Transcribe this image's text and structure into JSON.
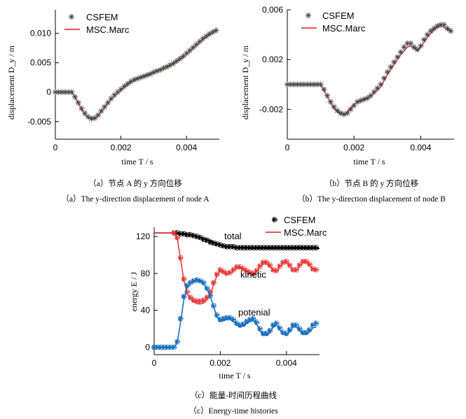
{
  "colors": {
    "csfem": "#444444",
    "marc": "#e8393b",
    "total": "#000000",
    "kinetic": "#e8393b",
    "potential": "#1a6fbf"
  },
  "chart_data": [
    {
      "id": "a",
      "type": "line",
      "xlabel": "time T / s",
      "ylabel": "displacement D_y / m",
      "xlim": [
        0,
        0.005
      ],
      "ylim": [
        -0.008,
        0.014
      ],
      "xticks": [
        "0",
        "0.002",
        "0.004"
      ],
      "yticks": [
        "-0.005",
        "0",
        "0.005",
        "0.010"
      ],
      "legend": {
        "position": "top-left",
        "entries": [
          "CSFEM",
          "MSC.Marc"
        ]
      },
      "caption_cn": "（a）节点 A 的 y 方向位移",
      "caption_en": "（a）The y-direction displacement of node A",
      "series": [
        {
          "name": "CSFEM",
          "marker": "asterisk",
          "x": [
            0,
            0.0001,
            0.0002,
            0.0003,
            0.0004,
            0.0005,
            0.0006,
            0.0007,
            0.0008,
            0.0009,
            0.001,
            0.0011,
            0.0012,
            0.0013,
            0.0014,
            0.0015,
            0.0016,
            0.0017,
            0.0018,
            0.0019,
            0.002,
            0.0021,
            0.0022,
            0.0023,
            0.0024,
            0.0025,
            0.0026,
            0.0027,
            0.0028,
            0.0029,
            0.003,
            0.0031,
            0.0032,
            0.0033,
            0.0034,
            0.0035,
            0.0036,
            0.0037,
            0.0038,
            0.0039,
            0.004,
            0.0041,
            0.0042,
            0.0043,
            0.0044,
            0.0045,
            0.0046,
            0.0047,
            0.0048,
            0.0049
          ],
          "y": [
            0,
            0,
            0,
            0,
            0,
            0,
            -0.0008,
            -0.0018,
            -0.0028,
            -0.0036,
            -0.0042,
            -0.0045,
            -0.0044,
            -0.0039,
            -0.0032,
            -0.0025,
            -0.0018,
            -0.0011,
            -0.0005,
            0,
            0.0005,
            0.001,
            0.0014,
            0.0018,
            0.0021,
            0.0023,
            0.0025,
            0.0027,
            0.0029,
            0.0031,
            0.0034,
            0.0036,
            0.0038,
            0.0041,
            0.0043,
            0.0046,
            0.0049,
            0.0053,
            0.0057,
            0.0061,
            0.0066,
            0.0071,
            0.0076,
            0.0081,
            0.0086,
            0.0091,
            0.0095,
            0.0099,
            0.0102,
            0.0105
          ]
        },
        {
          "name": "MSC.Marc",
          "marker": "line",
          "x": [
            0,
            0.0005,
            0.0006,
            0.0007,
            0.0008,
            0.0009,
            0.001,
            0.0011,
            0.0012,
            0.0013,
            0.0014,
            0.0015,
            0.0016,
            0.0017,
            0.0018,
            0.0019,
            0.002,
            0.0022,
            0.0024,
            0.0026,
            0.0028,
            0.003,
            0.0032,
            0.0034,
            0.0036,
            0.0038,
            0.004,
            0.0042,
            0.0044,
            0.0046,
            0.0048,
            0.0049
          ],
          "y": [
            0,
            0,
            -0.0009,
            -0.0019,
            -0.0029,
            -0.0037,
            -0.0043,
            -0.0046,
            -0.0045,
            -0.004,
            -0.0033,
            -0.0026,
            -0.0019,
            -0.0012,
            -0.0006,
            -0.0001,
            0.0004,
            0.0013,
            0.002,
            0.0025,
            0.0029,
            0.0033,
            0.0037,
            0.0042,
            0.0048,
            0.0056,
            0.0065,
            0.0075,
            0.0085,
            0.0094,
            0.0101,
            0.0104
          ]
        }
      ]
    },
    {
      "id": "b",
      "type": "line",
      "xlabel": "time T / s",
      "ylabel": "displacement D_y / m",
      "xlim": [
        0,
        0.005
      ],
      "ylim": [
        -0.0044,
        0.006
      ],
      "xticks": [
        "0",
        "0.002",
        "0.004"
      ],
      "yticks": [
        "-0.002",
        "0.002",
        "0.006"
      ],
      "legend": {
        "position": "top-left",
        "entries": [
          "CSFEM",
          "MSC.Marc"
        ]
      },
      "caption_cn": "（b）节点 B 的 y 方向位移",
      "caption_en": "（b）The y-direction displacement of node B",
      "series": [
        {
          "name": "CSFEM",
          "marker": "asterisk",
          "x": [
            0,
            0.0001,
            0.0002,
            0.0003,
            0.0004,
            0.0005,
            0.0006,
            0.0007,
            0.0008,
            0.0009,
            0.001,
            0.0011,
            0.0012,
            0.0013,
            0.0014,
            0.0015,
            0.0016,
            0.0017,
            0.0018,
            0.0019,
            0.002,
            0.0021,
            0.0022,
            0.0023,
            0.0024,
            0.0025,
            0.0026,
            0.0027,
            0.0028,
            0.0029,
            0.003,
            0.0031,
            0.0032,
            0.0033,
            0.0034,
            0.0035,
            0.0036,
            0.0037,
            0.0038,
            0.0039,
            0.004,
            0.0041,
            0.0042,
            0.0043,
            0.0044,
            0.0045,
            0.0046,
            0.0047,
            0.0048,
            0.0049
          ],
          "y": [
            0,
            0,
            0,
            0,
            0,
            0,
            0,
            0,
            0,
            0,
            0,
            -0.0004,
            -0.0009,
            -0.0014,
            -0.0018,
            -0.0021,
            -0.0023,
            -0.0024,
            -0.0023,
            -0.002,
            -0.0017,
            -0.0014,
            -0.0013,
            -0.0012,
            -0.0011,
            -0.0009,
            -0.0006,
            -0.0003,
            0,
            0.0005,
            0.001,
            0.0014,
            0.0018,
            0.0022,
            0.0026,
            0.003,
            0.0033,
            0.0033,
            0.003,
            0.0028,
            0.0031,
            0.0036,
            0.004,
            0.0043,
            0.0045,
            0.0047,
            0.0048,
            0.0048,
            0.0045,
            0.0043
          ]
        },
        {
          "name": "MSC.Marc",
          "marker": "line",
          "x": [
            0,
            0.001,
            0.0011,
            0.0012,
            0.0013,
            0.0014,
            0.0015,
            0.0016,
            0.0017,
            0.0018,
            0.0019,
            0.002,
            0.0022,
            0.0024,
            0.0026,
            0.0028,
            0.003,
            0.0032,
            0.0034,
            0.0036,
            0.0037,
            0.0038,
            0.0039,
            0.004,
            0.0042,
            0.0044,
            0.0045,
            0.0046,
            0.0047,
            0.0048,
            0.0049
          ],
          "y": [
            0,
            0,
            -0.0005,
            -0.001,
            -0.0015,
            -0.0019,
            -0.0022,
            -0.0024,
            -0.0024,
            -0.0022,
            -0.0019,
            -0.0016,
            -0.0013,
            -0.0011,
            -0.0007,
            -0.0002,
            0.0008,
            0.0016,
            0.0024,
            0.003,
            0.0031,
            0.0029,
            0.0027,
            0.003,
            0.0038,
            0.0044,
            0.0046,
            0.0047,
            0.0046,
            0.0044,
            0.0043
          ]
        }
      ]
    },
    {
      "id": "c",
      "type": "line",
      "xlabel": "time T / s",
      "ylabel": "energy E / J",
      "xlim": [
        0,
        0.005
      ],
      "ylim": [
        -8,
        130
      ],
      "xticks": [
        "0",
        "0.002",
        "0.004"
      ],
      "yticks": [
        "0",
        "40",
        "80",
        "120"
      ],
      "legend": {
        "position": "top-right",
        "entries": [
          "CSFEM",
          "MSC.Marc"
        ]
      },
      "annotations": [
        "total",
        "kinetic",
        "potenial"
      ],
      "caption_cn": "（c）能量-时间历程曲线",
      "caption_en": "（c）Energy-time histories",
      "series": [
        {
          "name": "total",
          "method": "MSC.Marc",
          "x": [
            0,
            0.0005,
            0.0008,
            0.0012,
            0.0016,
            0.002,
            0.0025,
            0.003,
            0.0035,
            0.004,
            0.0045,
            0.005
          ],
          "y": [
            124,
            124,
            123,
            121,
            117,
            111,
            108,
            107,
            107,
            107,
            107,
            107
          ]
        },
        {
          "name": "total",
          "method": "CSFEM",
          "x": [
            0.0006,
            0.0007,
            0.0008,
            0.0009,
            0.001,
            0.0011,
            0.0012,
            0.0013,
            0.0014,
            0.0015,
            0.0016,
            0.0017,
            0.0018,
            0.0019,
            0.002,
            0.0021,
            0.0022,
            0.0023,
            0.0024,
            0.0025,
            0.0026,
            0.0027,
            0.0028,
            0.0029,
            0.003,
            0.0031,
            0.0032,
            0.0033,
            0.0034,
            0.0035,
            0.0036,
            0.0037,
            0.0038,
            0.0039,
            0.004,
            0.0041,
            0.0042,
            0.0043,
            0.0044,
            0.0045,
            0.0046,
            0.0047,
            0.0048,
            0.0049
          ],
          "y": [
            124,
            124,
            123,
            123,
            122,
            122,
            121,
            120,
            119,
            117,
            116,
            114,
            113,
            112,
            111,
            110,
            109,
            109,
            109,
            108,
            108,
            108,
            108,
            108,
            108,
            108,
            108,
            108,
            108,
            108,
            108,
            108,
            108,
            108,
            108,
            108,
            108,
            108,
            108,
            108,
            108,
            108,
            108,
            108
          ]
        },
        {
          "name": "kinetic",
          "method": "MSC.Marc",
          "x": [
            0,
            0.0006,
            0.0007,
            0.0008,
            0.0009,
            0.001,
            0.0011,
            0.0012,
            0.0013,
            0.0014,
            0.0015,
            0.0016,
            0.0017,
            0.0018,
            0.0019,
            0.002,
            0.0021,
            0.0022,
            0.0023,
            0.0024,
            0.0025,
            0.0026,
            0.0027,
            0.0028,
            0.0029,
            0.003,
            0.0031,
            0.0032,
            0.0033,
            0.0034,
            0.0035,
            0.0036,
            0.0037,
            0.0038,
            0.0039,
            0.004,
            0.0041,
            0.0042,
            0.0043,
            0.0044,
            0.0045,
            0.0046,
            0.0047,
            0.0048,
            0.0049
          ],
          "y": [
            124,
            124,
            118,
            95,
            72,
            58,
            52,
            49,
            47,
            47,
            48,
            52,
            58,
            68,
            78,
            83,
            81,
            79,
            80,
            83,
            86,
            86,
            84,
            82,
            80,
            79,
            82,
            87,
            91,
            91,
            88,
            83,
            82,
            87,
            91,
            92,
            88,
            83,
            83,
            88,
            92,
            92,
            89,
            84,
            83
          ]
        },
        {
          "name": "kinetic",
          "method": "CSFEM",
          "x": [
            0.0006,
            0.0007,
            0.0008,
            0.0009,
            0.001,
            0.0011,
            0.0012,
            0.0013,
            0.0014,
            0.0015,
            0.0016,
            0.0017,
            0.0018,
            0.0019,
            0.002,
            0.0021,
            0.0022,
            0.0023,
            0.0024,
            0.0025,
            0.0026,
            0.0027,
            0.0028,
            0.0029,
            0.003,
            0.0031,
            0.0032,
            0.0033,
            0.0034,
            0.0035,
            0.0036,
            0.0037,
            0.0038,
            0.0039,
            0.004,
            0.0041,
            0.0042,
            0.0043,
            0.0044,
            0.0045,
            0.0046,
            0.0047,
            0.0048,
            0.0049
          ],
          "y": [
            124,
            119,
            97,
            74,
            60,
            54,
            51,
            50,
            50,
            51,
            54,
            60,
            70,
            79,
            84,
            82,
            80,
            81,
            84,
            87,
            87,
            85,
            83,
            81,
            80,
            83,
            88,
            92,
            92,
            89,
            84,
            83,
            88,
            92,
            93,
            89,
            84,
            84,
            89,
            93,
            93,
            90,
            85,
            84
          ]
        },
        {
          "name": "potenial",
          "method": "MSC.Marc",
          "x": [
            0,
            0.0006,
            0.0007,
            0.0008,
            0.0009,
            0.001,
            0.0011,
            0.0012,
            0.0013,
            0.0014,
            0.0015,
            0.0016,
            0.0017,
            0.0018,
            0.0019,
            0.002,
            0.0021,
            0.0022,
            0.0023,
            0.0024,
            0.0025,
            0.0026,
            0.0027,
            0.0028,
            0.0029,
            0.003,
            0.0031,
            0.0032,
            0.0033,
            0.0034,
            0.0035,
            0.0036,
            0.0037,
            0.0038,
            0.0039,
            0.004,
            0.0041,
            0.0042,
            0.0043,
            0.0044,
            0.0045,
            0.0046,
            0.0047,
            0.0048,
            0.0049
          ],
          "y": [
            0,
            0,
            5,
            28,
            52,
            65,
            69,
            71,
            72,
            71,
            69,
            63,
            55,
            44,
            33,
            28,
            29,
            30,
            30,
            28,
            24,
            22,
            23,
            26,
            28,
            29,
            25,
            18,
            13,
            13,
            16,
            22,
            24,
            19,
            14,
            13,
            17,
            22,
            22,
            18,
            14,
            14,
            17,
            21,
            22
          ]
        },
        {
          "name": "potenial",
          "method": "CSFEM",
          "x": [
            0,
            0.0001,
            0.0002,
            0.0003,
            0.0004,
            0.0005,
            0.0006,
            0.0007,
            0.0008,
            0.0009,
            0.001,
            0.0011,
            0.0012,
            0.0013,
            0.0014,
            0.0015,
            0.0016,
            0.0017,
            0.0018,
            0.0019,
            0.002,
            0.0021,
            0.0022,
            0.0023,
            0.0024,
            0.0025,
            0.0026,
            0.0027,
            0.0028,
            0.0029,
            0.003,
            0.0031,
            0.0032,
            0.0033,
            0.0034,
            0.0035,
            0.0036,
            0.0037,
            0.0038,
            0.0039,
            0.004,
            0.0041,
            0.0042,
            0.0043,
            0.0044,
            0.0045,
            0.0046,
            0.0047,
            0.0048,
            0.0049
          ],
          "y": [
            0,
            0,
            0,
            0,
            0,
            0,
            0,
            6,
            31,
            55,
            67,
            70,
            72,
            73,
            72,
            70,
            64,
            56,
            45,
            35,
            30,
            31,
            32,
            32,
            30,
            26,
            24,
            25,
            28,
            30,
            31,
            27,
            20,
            15,
            15,
            18,
            24,
            26,
            21,
            16,
            15,
            19,
            24,
            24,
            20,
            16,
            16,
            19,
            24,
            26
          ]
        }
      ]
    }
  ]
}
